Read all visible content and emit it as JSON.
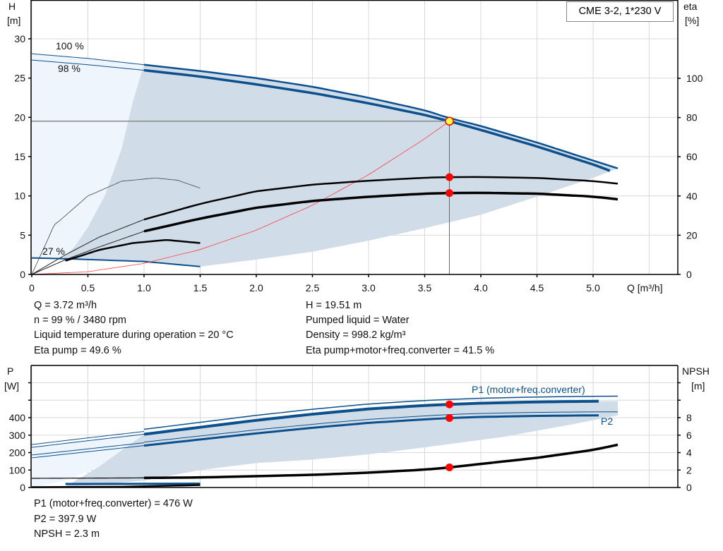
{
  "legend_title": "CME 3-2, 1*230 V",
  "colors": {
    "blue": "#0b4f8c",
    "shade_dark": "#d0dce8",
    "shade_light": "#eef5fd",
    "operating_red": "#ff0000",
    "system_curve": "#ff4040",
    "yellow": "#ffff40",
    "grid": "#d8d8d8"
  },
  "info_top": {
    "left": [
      "Q = 3.72 m³/h",
      "n = 99 % / 3480 rpm",
      "Liquid temperature during operation = 20 °C",
      "Eta pump = 49.6 %"
    ],
    "right": [
      "H = 19.51 m",
      "Pumped liquid = Water",
      "Density = 998.2 kg/m³",
      "Eta pump+motor+freq.converter = 41.5 %"
    ]
  },
  "info_bottom": [
    "P1 (motor+freq.converter) = 476 W",
    "P2 = 397.9 W",
    "NPSH = 2.3 m"
  ],
  "chart_data": [
    {
      "type": "line",
      "title": "",
      "xlabel": "Q [m³/h]",
      "ylabel": [
        "H",
        "[m]"
      ],
      "y2label": [
        "eta",
        "[%]"
      ],
      "xlim": [
        0,
        5.75
      ],
      "ylim": [
        0,
        35
      ],
      "y2lim": [
        0,
        125
      ],
      "grid": true,
      "xticks": [
        "0",
        "0.5",
        "1.0",
        "1.5",
        "2.0",
        "2.5",
        "3.0",
        "3.5",
        "4.0",
        "4.5",
        "5.0"
      ],
      "yticks": [
        "0",
        "5",
        "10",
        "15",
        "20",
        "25",
        "30"
      ],
      "y2ticks": [
        "0",
        "20",
        "40",
        "60",
        "80",
        "100"
      ],
      "curve_labels": [
        "100 %",
        "98 %",
        "27 %"
      ],
      "series": [
        {
          "name": "100 %",
          "axis": "H",
          "x": [
            0,
            0.5,
            1.0,
            1.5,
            2.0,
            2.5,
            3.0,
            3.5,
            3.72,
            4.0,
            4.5,
            5.0,
            5.22
          ],
          "y": [
            28.1,
            27.5,
            26.7,
            25.9,
            25.0,
            23.9,
            22.5,
            20.9,
            19.9,
            18.9,
            16.8,
            14.5,
            13.5
          ]
        },
        {
          "name": "98 %",
          "axis": "H",
          "x": [
            0,
            0.5,
            1.0,
            1.5,
            2.0,
            2.5,
            3.0,
            3.5,
            3.72,
            4.0,
            4.5,
            5.0,
            5.15
          ],
          "y": [
            27.3,
            26.7,
            26.0,
            25.2,
            24.2,
            23.1,
            21.8,
            20.3,
            19.51,
            18.4,
            16.3,
            14.0,
            13.2
          ]
        },
        {
          "name": "27 %",
          "axis": "H",
          "x": [
            0,
            0.3,
            1.0,
            1.5
          ],
          "y": [
            2.1,
            2.0,
            1.65,
            1.0
          ]
        },
        {
          "axis": "H",
          "role": "system curve",
          "x": [
            0,
            0.5,
            1.0,
            1.5,
            2.0,
            2.5,
            3.0,
            3.5,
            3.72
          ],
          "y": [
            0,
            0.35,
            1.41,
            3.17,
            5.64,
            8.81,
            12.69,
            17.27,
            19.51
          ]
        },
        {
          "axis": "eta",
          "role": "eta pump",
          "x": [
            0,
            0.3,
            0.6,
            1.0,
            1.5,
            2.0,
            2.5,
            3.0,
            3.5,
            3.72,
            4.0,
            4.5,
            5.0,
            5.22
          ],
          "y": [
            0,
            10,
            19,
            28,
            36,
            42.4,
            45.8,
            47.8,
            49.3,
            49.6,
            49.7,
            49.2,
            47.6,
            46.3
          ]
        },
        {
          "axis": "eta",
          "role": "eta pump+motor+freq.converter",
          "x": [
            0,
            0.3,
            0.6,
            1.0,
            1.5,
            2.0,
            2.5,
            3.0,
            3.5,
            3.72,
            4.0,
            4.5,
            5.0,
            5.22
          ],
          "y": [
            0,
            7.5,
            14,
            22,
            28.5,
            34,
            37.5,
            39.6,
            41.2,
            41.5,
            41.6,
            41.2,
            39.7,
            38.3
          ]
        },
        {
          "axis": "eta",
          "role": "eta pump min speed",
          "x": [
            0,
            0.2,
            0.5,
            0.8,
            1.1,
            1.3,
            1.5
          ],
          "y": [
            0,
            25,
            40,
            47.5,
            49.2,
            48,
            44
          ]
        },
        {
          "axis": "eta",
          "role": "eta total min speed",
          "x": [
            0,
            0.3,
            0.6,
            0.9,
            1.2,
            1.5
          ],
          "y": [
            0,
            7,
            12.5,
            16,
            17.6,
            16
          ]
        }
      ],
      "operating_point": {
        "Q": 3.72,
        "H": 19.51,
        "eta_pump": 49.6,
        "eta_total": 41.5
      }
    },
    {
      "type": "line",
      "title": "",
      "ylabel": [
        "P",
        "[W]"
      ],
      "y2label": [
        "NPSH",
        "[m]"
      ],
      "xlim": [
        0,
        5.75
      ],
      "ylim": [
        0,
        700
      ],
      "y2lim": [
        0,
        14
      ],
      "grid": true,
      "yticks": [
        "0",
        "100",
        "200",
        "300",
        "400"
      ],
      "y2ticks": [
        "0",
        "2",
        "4",
        "6",
        "8"
      ],
      "series": [
        {
          "name": "P1 (motor+freq.converter)",
          "axis": "P",
          "x": [
            0,
            0.5,
            1.0,
            1.5,
            2.0,
            2.5,
            3.0,
            3.5,
            3.72,
            4.0,
            4.5,
            5.0,
            5.22
          ],
          "y": [
            230,
            268,
            305,
            345,
            385,
            420,
            450,
            470,
            476,
            483,
            490,
            494,
            495
          ]
        },
        {
          "name": "P2",
          "axis": "P",
          "x": [
            0,
            0.5,
            1.0,
            1.5,
            2.0,
            2.5,
            3.0,
            3.5,
            3.72,
            4.0,
            4.5,
            5.0,
            5.22
          ],
          "y": [
            170,
            205,
            240,
            275,
            310,
            342,
            370,
            390,
            397.9,
            404,
            410,
            413,
            413
          ]
        },
        {
          "axis": "NPSH",
          "role": "NPSH",
          "x": [
            0,
            1.0,
            1.5,
            2.0,
            2.5,
            3.0,
            3.5,
            3.72,
            4.0,
            4.5,
            5.0,
            5.22
          ],
          "y": [
            1.05,
            1.1,
            1.15,
            1.3,
            1.45,
            1.7,
            2.05,
            2.3,
            2.7,
            3.4,
            4.3,
            4.9
          ]
        }
      ],
      "operating_point": {
        "Q": 3.72,
        "P1": 476,
        "P2": 397.9,
        "NPSH": 2.3
      }
    }
  ]
}
